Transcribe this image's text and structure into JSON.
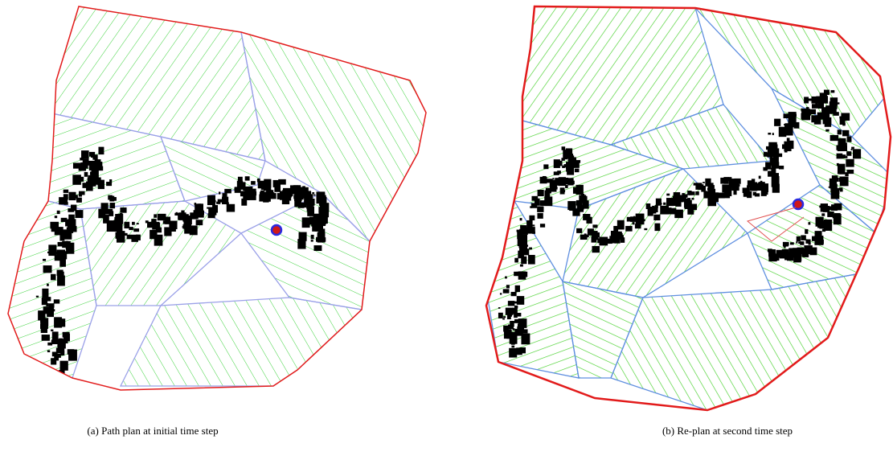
{
  "figure": {
    "panels": [
      {
        "caption": "(a) Path plan at initial time step"
      },
      {
        "caption": "(b) Re-plan at second time step"
      }
    ]
  }
}
